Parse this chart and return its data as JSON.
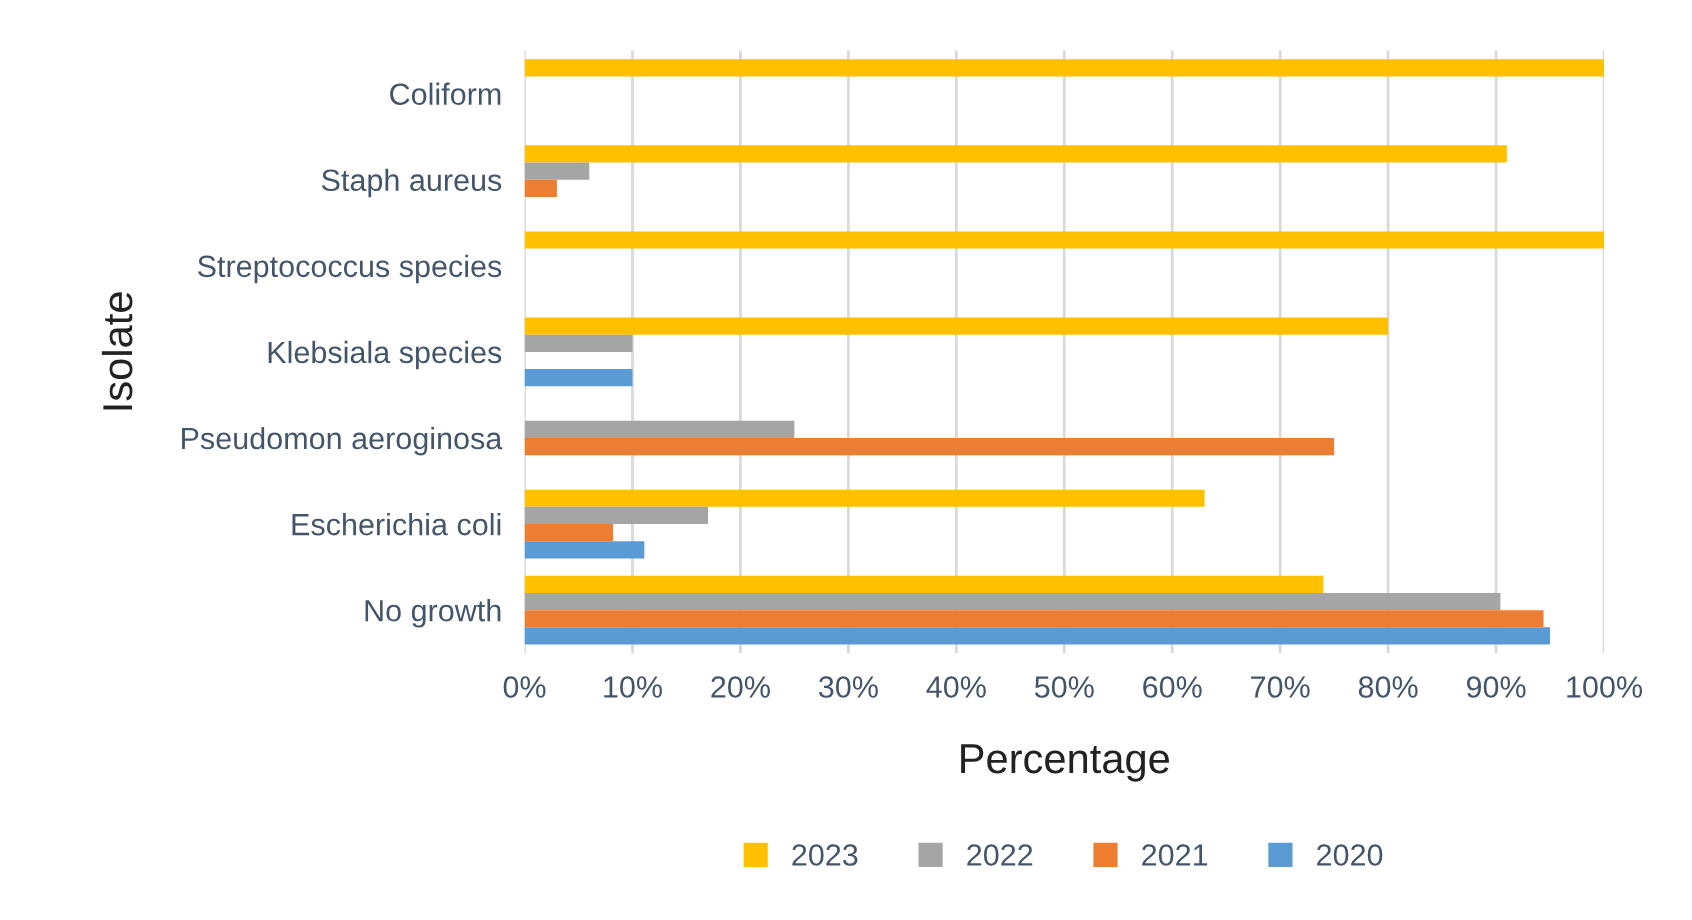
{
  "chart_data": {
    "type": "bar",
    "orientation": "horizontal",
    "xlabel": "Percentage",
    "ylabel": "Isolate",
    "categories": [
      "Coliform",
      "Staph aureus",
      "Streptococcus species",
      "Klebsiala species",
      "Pseudomon aeroginosa",
      "Escherichia coli",
      "No growth"
    ],
    "series": [
      {
        "name": "2023",
        "color": "#ffc000",
        "values": [
          100,
          91,
          100,
          80,
          null,
          63,
          74
        ]
      },
      {
        "name": "2022",
        "color": "#a5a5a5",
        "values": [
          null,
          6,
          null,
          10,
          25,
          17,
          90.4
        ]
      },
      {
        "name": "2021",
        "color": "#ed7d31",
        "values": [
          null,
          3,
          null,
          null,
          75,
          8.2,
          94.4
        ]
      },
      {
        "name": "2020",
        "color": "#5b9bd5",
        "values": [
          null,
          null,
          null,
          10,
          null,
          11.1,
          95
        ]
      }
    ],
    "xlim": [
      0,
      100
    ],
    "xticks": [
      {
        "value": 0,
        "label": "0%"
      },
      {
        "value": 10,
        "label": "10%"
      },
      {
        "value": 20,
        "label": "20%"
      },
      {
        "value": 30,
        "label": "30%"
      },
      {
        "value": 40,
        "label": "40%"
      },
      {
        "value": 50,
        "label": "50%"
      },
      {
        "value": 60,
        "label": "60%"
      },
      {
        "value": 70,
        "label": "70%"
      },
      {
        "value": 80,
        "label": "80%"
      },
      {
        "value": 90,
        "label": "90%"
      },
      {
        "value": 100,
        "label": "100%"
      }
    ],
    "grid": "x",
    "legend": "bottom"
  }
}
